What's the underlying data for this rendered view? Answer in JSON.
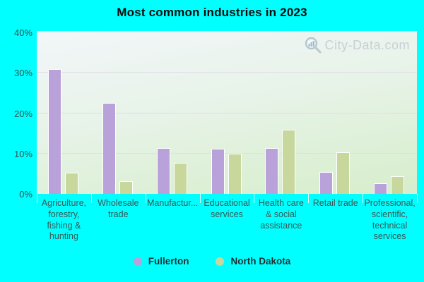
{
  "title": "Most common industries in 2023",
  "watermark": {
    "text": "City-Data.com",
    "icon": "magnifier-bar-chart-icon"
  },
  "chart_data": {
    "type": "bar",
    "title": "Most common industries in 2023",
    "categories": [
      "Agriculture, forestry, fishing & hunting",
      "Wholesale trade",
      "Manufactur...",
      "Educational services",
      "Health care & social assistance",
      "Retail trade",
      "Professional, scientific, technical services"
    ],
    "series": [
      {
        "name": "Fullerton",
        "color": "#b9a1d9",
        "values": [
          31.0,
          22.5,
          11.3,
          11.2,
          11.3,
          5.5,
          2.7
        ]
      },
      {
        "name": "North Dakota",
        "color": "#c8d79c",
        "values": [
          5.2,
          3.2,
          7.7,
          10.0,
          15.9,
          10.3,
          4.4
        ]
      }
    ],
    "xlabel": "",
    "ylabel": "",
    "ylim": [
      0,
      40
    ],
    "yticks": [
      {
        "value": 0,
        "label": "0%"
      },
      {
        "value": 10,
        "label": "10%"
      },
      {
        "value": 20,
        "label": "20%"
      },
      {
        "value": 30,
        "label": "30%"
      },
      {
        "value": 40,
        "label": "40%"
      }
    ],
    "grid": true,
    "legend_position": "bottom"
  },
  "legend": {
    "items": [
      {
        "label": "Fullerton",
        "color": "#b9a1d9"
      },
      {
        "label": "North Dakota",
        "color": "#c8d79c"
      }
    ]
  },
  "theme": {
    "page_bg": "#00ffff",
    "gridline": "#e0dde6",
    "bar_border": "#ffffff",
    "title_color": "#0b0b0b",
    "axis_label_color": "#33514e",
    "category_label_color": "#3c5653",
    "legend_text_color": "#1c2f2f",
    "watermark_color": "#c4cdd3"
  }
}
